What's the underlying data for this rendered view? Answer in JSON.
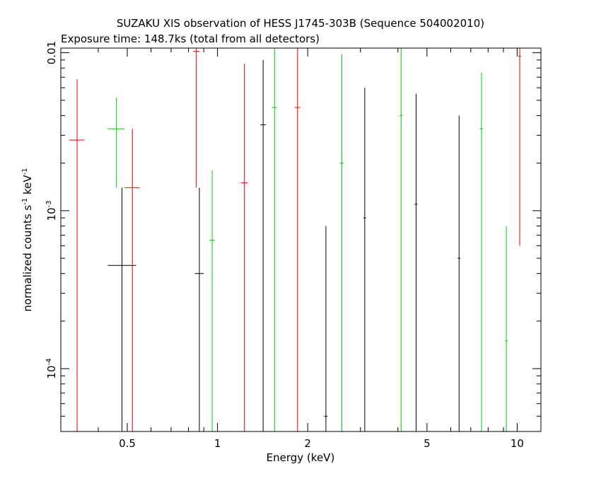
{
  "title": "SUZAKU XIS observation of HESS J1745-303B (Sequence 504002010)",
  "subtitle": "Exposure time: 148.7ks (total from all detectors)",
  "chart_data": {
    "type": "scatter",
    "xlabel": "Energy (keV)",
    "ylabel_parts": {
      "base": "normalized counts s",
      "sup1": "-1",
      "mid": " keV",
      "sup2": "-1"
    },
    "xscale": "log",
    "yscale": "log",
    "xlim": [
      0.3,
      12
    ],
    "ylim": [
      4e-05,
      0.0107
    ],
    "x_ticks": [
      {
        "value": 0.5,
        "label": "0.5"
      },
      {
        "value": 1,
        "label": "1"
      },
      {
        "value": 2,
        "label": "2"
      },
      {
        "value": 5,
        "label": "5"
      },
      {
        "value": 10,
        "label": "10"
      }
    ],
    "y_ticks": [
      {
        "value": 0.0001,
        "base": "10",
        "exp": "-4"
      },
      {
        "value": 0.001,
        "base": "10",
        "exp": "-3"
      },
      {
        "value": 0.01,
        "base": "0.01",
        "exp": ""
      }
    ],
    "series_colors": [
      "#000000",
      "#e00000",
      "#00d000"
    ],
    "series": [
      {
        "color": "#000000",
        "points": [
          {
            "x": 0.48,
            "xerr": [
              0.43,
              0.535
            ],
            "y": 0.00045,
            "ylo": 4e-05,
            "yhi": 0.0014
          },
          {
            "x": 0.87,
            "xerr": [
              0.84,
              0.9
            ],
            "y": 0.0004,
            "ylo": 4e-05,
            "yhi": 0.0014
          },
          {
            "x": 1.42,
            "xerr": [
              1.39,
              1.45
            ],
            "y": 0.0035,
            "ylo": 4e-05,
            "yhi": 0.009
          },
          {
            "x": 2.3,
            "xerr": [
              2.27,
              2.33
            ],
            "y": 5e-05,
            "ylo": 4e-05,
            "yhi": 0.0008
          },
          {
            "x": 3.1,
            "xerr": [
              3.07,
              3.13
            ],
            "y": 0.0009,
            "ylo": 4e-05,
            "yhi": 0.006
          },
          {
            "x": 4.6,
            "xerr": [
              4.55,
              4.65
            ],
            "y": 0.0011,
            "ylo": 4e-05,
            "yhi": 0.0055
          },
          {
            "x": 6.4,
            "xerr": [
              6.33,
              6.47
            ],
            "y": 0.0005,
            "ylo": 4e-05,
            "yhi": 0.004
          }
        ]
      },
      {
        "color": "#e00000",
        "points": [
          {
            "x": 0.34,
            "xerr": [
              0.32,
              0.36
            ],
            "y": 0.0028,
            "ylo": 4e-05,
            "yhi": 0.0068
          },
          {
            "x": 0.52,
            "xerr": [
              0.49,
              0.55
            ],
            "y": 0.0014,
            "ylo": 4e-05,
            "yhi": 0.0033
          },
          {
            "x": 0.85,
            "xerr": [
              0.83,
              0.87
            ],
            "y": 0.0102,
            "ylo": 0.0014,
            "yhi": 0.0107
          },
          {
            "x": 1.23,
            "xerr": [
              1.2,
              1.26
            ],
            "y": 0.0015,
            "ylo": 4e-05,
            "yhi": 0.0085
          },
          {
            "x": 1.85,
            "xerr": [
              1.81,
              1.89
            ],
            "y": 0.0045,
            "ylo": 4e-05,
            "yhi": 0.0107
          },
          {
            "x": 10.2,
            "xerr": [
              10.1,
              10.3
            ],
            "y": 0.0095,
            "ylo": 0.0006,
            "yhi": 0.0107
          }
        ]
      },
      {
        "color": "#00d000",
        "points": [
          {
            "x": 0.46,
            "xerr": [
              0.43,
              0.49
            ],
            "y": 0.0033,
            "ylo": 0.0014,
            "yhi": 0.0052
          },
          {
            "x": 0.96,
            "xerr": [
              0.94,
              0.98
            ],
            "y": 0.00065,
            "ylo": 4e-05,
            "yhi": 0.0018
          },
          {
            "x": 1.55,
            "xerr": [
              1.52,
              1.58
            ],
            "y": 0.0045,
            "ylo": 4e-05,
            "yhi": 0.0107
          },
          {
            "x": 2.6,
            "xerr": [
              2.56,
              2.64
            ],
            "y": 0.002,
            "ylo": 4e-05,
            "yhi": 0.0098
          },
          {
            "x": 4.1,
            "xerr": [
              4.05,
              4.15
            ],
            "y": 0.004,
            "ylo": 4e-05,
            "yhi": 0.0107
          },
          {
            "x": 7.6,
            "xerr": [
              7.5,
              7.7
            ],
            "y": 0.0033,
            "ylo": 4e-05,
            "yhi": 0.0075
          },
          {
            "x": 9.2,
            "xerr": [
              9.1,
              9.3
            ],
            "y": 0.00015,
            "ylo": 4e-05,
            "yhi": 0.0008
          }
        ]
      }
    ]
  }
}
